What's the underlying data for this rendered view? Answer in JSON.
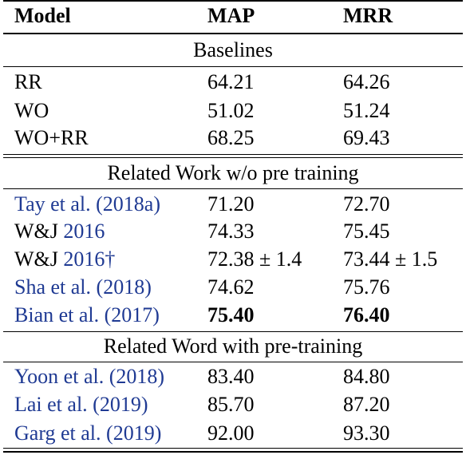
{
  "header": {
    "model": "Model",
    "map": "MAP",
    "mrr": "MRR"
  },
  "sections": [
    {
      "title": "Baselines",
      "rows": [
        {
          "name": "RR",
          "name_pre": "",
          "cite": "",
          "name_post": "",
          "map": "64.21",
          "mrr": "64.26"
        },
        {
          "name": "WO",
          "name_pre": "",
          "cite": "",
          "name_post": "",
          "map": "51.02",
          "mrr": "51.24"
        },
        {
          "name": "WO+RR",
          "name_pre": "",
          "cite": "",
          "name_post": "",
          "map": "68.25",
          "mrr": "69.43"
        }
      ]
    },
    {
      "title": "Related Work w/o pre training",
      "rows": [
        {
          "name_pre": "Tay et al. (",
          "cite": "2018a",
          "name_post": ")",
          "map": "71.20",
          "mrr": "72.70"
        },
        {
          "name_pre": "W&J ",
          "cite": "2016",
          "name_post": "",
          "map": "74.33",
          "mrr": "75.45"
        },
        {
          "name_pre": "W&J ",
          "cite": "2016",
          "name_post": "†",
          "map": "72.38 ± 1.4",
          "mrr": "73.44 ± 1.5"
        },
        {
          "name_pre": "Sha et al. (",
          "cite": "2018",
          "name_post": ")",
          "map": "74.62",
          "mrr": "75.76"
        },
        {
          "name_pre": "Bian et al. (",
          "cite": "2017",
          "name_post": ")",
          "map": "75.40",
          "mrr": "76.40",
          "bold_scores": true
        }
      ]
    },
    {
      "title": "Related Word with pre-training",
      "rows": [
        {
          "name_pre": "Yoon et al. (",
          "cite": "2018",
          "name_post": ")",
          "map": "83.40",
          "mrr": "84.80"
        },
        {
          "name_pre": "Lai et al. (",
          "cite": "2019",
          "name_post": ")",
          "map": "85.70",
          "mrr": "87.20"
        },
        {
          "name_pre": "Garg et al. (",
          "cite": "2019",
          "name_post": ")",
          "map": "92.00",
          "mrr": "93.30"
        }
      ]
    }
  ],
  "colors": {
    "citation": "#1f3a93",
    "text": "#000000"
  }
}
